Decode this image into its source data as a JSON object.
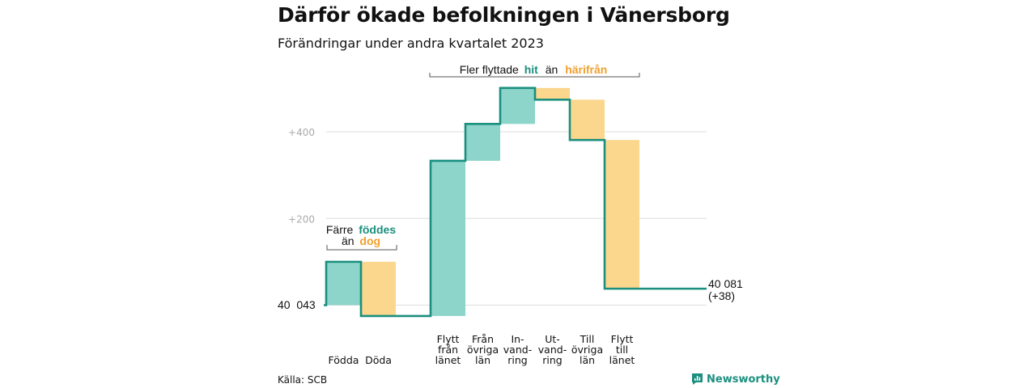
{
  "title": "Därför ökade befolkningen i Vänersborg",
  "subtitle": "Förändringar under andra kvartalet 2023",
  "source": "Källa: SCB",
  "brand": "Newsworthy",
  "colors": {
    "increase": "#8dd4ca",
    "decrease": "#fbd68d",
    "line": "#1a8f7e",
    "teal_text": "#1a8f7e",
    "orange_text": "#f0a030",
    "grid": "#dddddd",
    "tick": "#aaaaaa"
  },
  "annotations": {
    "births": {
      "line1": "Färre",
      "line1_hl": "föddes",
      "line2": "än",
      "line2_hl": "dog"
    },
    "migration": {
      "pre": "Fler flyttade",
      "hl1": "hit",
      "mid": "än",
      "hl2": "härifrån"
    }
  },
  "chart_data": {
    "type": "waterfall",
    "title": "Därför ökade befolkningen i Vänersborg",
    "subtitle": "Förändringar under andra kvartalet 2023",
    "start_value": 40043,
    "start_label": "40  043",
    "end_value": 40081,
    "end_label": "40 081",
    "end_change_label": "(+38)",
    "y_ticks": [
      {
        "value": 200,
        "label": "+200"
      },
      {
        "value": 400,
        "label": "+400"
      }
    ],
    "ylim": [
      -35,
      535
    ],
    "grid": true,
    "steps": [
      {
        "label": [
          "Födda"
        ],
        "from": 0,
        "to": 100
      },
      {
        "label": [
          "Döda"
        ],
        "from": 100,
        "to": -25
      },
      {
        "label": [
          "Flytt",
          "från",
          "länet"
        ],
        "from": -25,
        "to": 333
      },
      {
        "label": [
          "Från",
          "övriga",
          "län"
        ],
        "from": 333,
        "to": 418
      },
      {
        "label": [
          "In-",
          "vand-",
          "ring"
        ],
        "from": 418,
        "to": 501
      },
      {
        "label": [
          "Ut-",
          "vand-",
          "ring"
        ],
        "from": 501,
        "to": 474
      },
      {
        "label": [
          "Till",
          "övriga",
          "län"
        ],
        "from": 474,
        "to": 381
      },
      {
        "label": [
          "Flytt",
          "till",
          "länet"
        ],
        "from": 381,
        "to": 38
      }
    ]
  }
}
